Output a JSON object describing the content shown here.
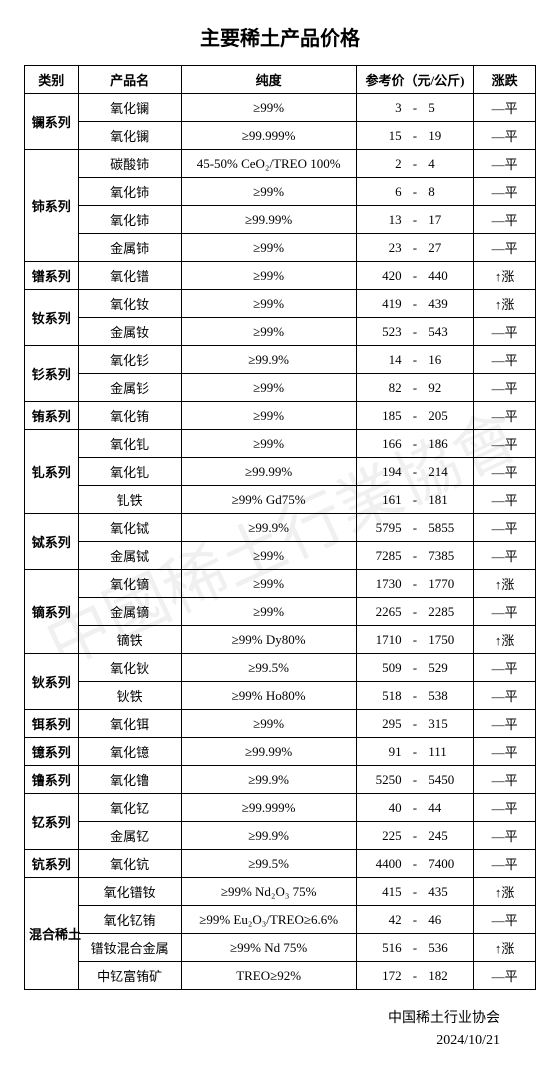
{
  "title": "主要稀土产品价格",
  "headers": {
    "category": "类别",
    "product": "产品名",
    "purity": "纯度",
    "price": "参考价（元/公斤)",
    "trend": "涨跌"
  },
  "colors": {
    "text": "#000000",
    "border": "#000000",
    "background": "#ffffff",
    "watermark": "#d6d6d6"
  },
  "groups": [
    {
      "category": "镧系列",
      "rows": [
        {
          "product": "氧化镧",
          "purity": "≥99%",
          "low": "3",
          "high": "5",
          "trend": "—平"
        },
        {
          "product": "氧化镧",
          "purity": "≥99.999%",
          "low": "15",
          "high": "19",
          "trend": "—平"
        }
      ]
    },
    {
      "category": "铈系列",
      "rows": [
        {
          "product": "碳酸铈",
          "purity": "45-50% CeO₂/TREO 100%",
          "low": "2",
          "high": "4",
          "trend": "—平"
        },
        {
          "product": "氧化铈",
          "purity": "≥99%",
          "low": "6",
          "high": "8",
          "trend": "—平"
        },
        {
          "product": "氧化铈",
          "purity": "≥99.99%",
          "low": "13",
          "high": "17",
          "trend": "—平"
        },
        {
          "product": "金属铈",
          "purity": "≥99%",
          "low": "23",
          "high": "27",
          "trend": "—平"
        }
      ]
    },
    {
      "category": "镨系列",
      "rows": [
        {
          "product": "氧化镨",
          "purity": "≥99%",
          "low": "420",
          "high": "440",
          "trend": "↑涨"
        }
      ]
    },
    {
      "category": "钕系列",
      "rows": [
        {
          "product": "氧化钕",
          "purity": "≥99%",
          "low": "419",
          "high": "439",
          "trend": "↑涨"
        },
        {
          "product": "金属钕",
          "purity": "≥99%",
          "low": "523",
          "high": "543",
          "trend": "—平"
        }
      ]
    },
    {
      "category": "钐系列",
      "rows": [
        {
          "product": "氧化钐",
          "purity": "≥99.9%",
          "low": "14",
          "high": "16",
          "trend": "—平"
        },
        {
          "product": "金属钐",
          "purity": "≥99%",
          "low": "82",
          "high": "92",
          "trend": "—平"
        }
      ]
    },
    {
      "category": "铕系列",
      "rows": [
        {
          "product": "氧化铕",
          "purity": "≥99%",
          "low": "185",
          "high": "205",
          "trend": "—平"
        }
      ]
    },
    {
      "category": "钆系列",
      "rows": [
        {
          "product": "氧化钆",
          "purity": "≥99%",
          "low": "166",
          "high": "186",
          "trend": "—平"
        },
        {
          "product": "氧化钆",
          "purity": "≥99.99%",
          "low": "194",
          "high": "214",
          "trend": "—平"
        },
        {
          "product": "钆铁",
          "purity": "≥99% Gd75%",
          "low": "161",
          "high": "181",
          "trend": "—平"
        }
      ]
    },
    {
      "category": "铽系列",
      "rows": [
        {
          "product": "氧化铽",
          "purity": "≥99.9%",
          "low": "5795",
          "high": "5855",
          "trend": "—平"
        },
        {
          "product": "金属铽",
          "purity": "≥99%",
          "low": "7285",
          "high": "7385",
          "trend": "—平"
        }
      ]
    },
    {
      "category": "镝系列",
      "rows": [
        {
          "product": "氧化镝",
          "purity": "≥99%",
          "low": "1730",
          "high": "1770",
          "trend": "↑涨"
        },
        {
          "product": "金属镝",
          "purity": "≥99%",
          "low": "2265",
          "high": "2285",
          "trend": "—平"
        },
        {
          "product": "镝铁",
          "purity": "≥99% Dy80%",
          "low": "1710",
          "high": "1750",
          "trend": "↑涨"
        }
      ]
    },
    {
      "category": "钬系列",
      "rows": [
        {
          "product": "氧化钬",
          "purity": "≥99.5%",
          "low": "509",
          "high": "529",
          "trend": "—平"
        },
        {
          "product": "钬铁",
          "purity": "≥99% Ho80%",
          "low": "518",
          "high": "538",
          "trend": "—平"
        }
      ]
    },
    {
      "category": "铒系列",
      "rows": [
        {
          "product": "氧化铒",
          "purity": "≥99%",
          "low": "295",
          "high": "315",
          "trend": "—平"
        }
      ]
    },
    {
      "category": "镱系列",
      "rows": [
        {
          "product": "氧化镱",
          "purity": "≥99.99%",
          "low": "91",
          "high": "111",
          "trend": "—平"
        }
      ]
    },
    {
      "category": "镥系列",
      "rows": [
        {
          "product": "氧化镥",
          "purity": "≥99.9%",
          "low": "5250",
          "high": "5450",
          "trend": "—平"
        }
      ]
    },
    {
      "category": "钇系列",
      "rows": [
        {
          "product": "氧化钇",
          "purity": "≥99.999%",
          "low": "40",
          "high": "44",
          "trend": "—平"
        },
        {
          "product": "金属钇",
          "purity": "≥99.9%",
          "low": "225",
          "high": "245",
          "trend": "—平"
        }
      ]
    },
    {
      "category": "钪系列",
      "rows": [
        {
          "product": "氧化钪",
          "purity": "≥99.5%",
          "low": "4400",
          "high": "7400",
          "trend": "—平"
        }
      ]
    },
    {
      "category": "混合稀土",
      "rows": [
        {
          "product": "氧化镨钕",
          "purity": "≥99%  Nd₂O₃  75%",
          "low": "415",
          "high": "435",
          "trend": "↑涨"
        },
        {
          "product": "氧化钇铕",
          "purity": "≥99% Eu₂O₃/TREO≥6.6%",
          "low": "42",
          "high": "46",
          "trend": "—平"
        },
        {
          "product": "镨钕混合金属",
          "purity": "≥99% Nd 75%",
          "low": "516",
          "high": "536",
          "trend": "↑涨"
        },
        {
          "product": "中钇富铕矿",
          "purity": "TREO≥92%",
          "low": "172",
          "high": "182",
          "trend": "—平"
        }
      ]
    }
  ],
  "footer": {
    "org": "中国稀土行业协会",
    "date": "2024/10/21"
  },
  "watermark": "中國稀土行業協會"
}
